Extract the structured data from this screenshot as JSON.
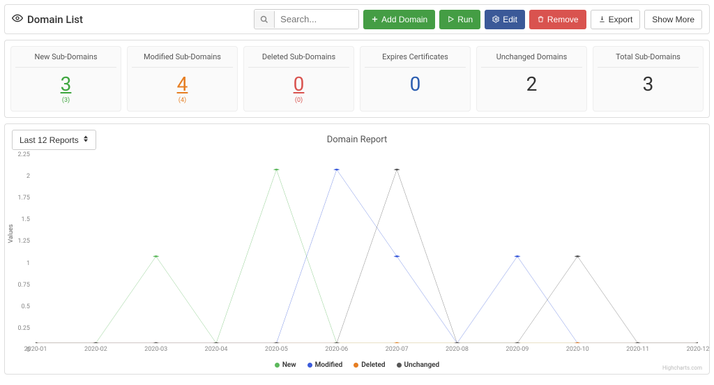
{
  "header": {
    "title": "Domain List",
    "search_placeholder": "Search...",
    "buttons": {
      "add": {
        "label": "Add Domain",
        "bg": "#449d44"
      },
      "run": {
        "label": "Run",
        "bg": "#449d44"
      },
      "edit": {
        "label": "Edit",
        "bg": "#3b5998"
      },
      "remove": {
        "label": "Remove",
        "bg": "#d9534f"
      },
      "export": {
        "label": "Export"
      },
      "more": {
        "label": "Show More"
      }
    }
  },
  "stats": [
    {
      "label": "New Sub-Domains",
      "value": "3",
      "sub": "(3)",
      "color": "#3fa63f",
      "linkish": true
    },
    {
      "label": "Modified Sub-Domains",
      "value": "4",
      "sub": "(4)",
      "color": "#e67e22",
      "linkish": true
    },
    {
      "label": "Deleted Sub-Domains",
      "value": "0",
      "sub": "(0)",
      "color": "#d9534f",
      "linkish": true
    },
    {
      "label": "Expires Certificates",
      "value": "0",
      "color": "#2a5db0"
    },
    {
      "label": "Unchanged Domains",
      "value": "2",
      "color": "#333333"
    },
    {
      "label": "Total Sub-Domains",
      "value": "3",
      "color": "#333333"
    }
  ],
  "chart": {
    "dropdown_label": "Last 12 Reports",
    "title": "Domain Report",
    "type": "line",
    "y_label": "Values",
    "ylim": [
      0,
      2.25
    ],
    "ytick_step": 0.25,
    "categories": [
      "2020-01",
      "2020-02",
      "2020-03",
      "2020-04",
      "2020-05",
      "2020-06",
      "2020-07",
      "2020-08",
      "2020-09",
      "2020-10",
      "2020-11",
      "2020-12"
    ],
    "background_color": "#ffffff",
    "marker": "diamond",
    "marker_size": 4,
    "line_width": 1,
    "series": [
      {
        "name": "New",
        "color": "#5cb85c",
        "values": [
          0,
          0,
          1,
          0,
          2,
          0,
          0,
          0,
          0,
          0,
          0,
          0
        ]
      },
      {
        "name": "Modified",
        "color": "#3b5bdb",
        "values": [
          0,
          0,
          0,
          0,
          0,
          2,
          1,
          0,
          1,
          0,
          0,
          0
        ]
      },
      {
        "name": "Deleted",
        "color": "#e67e22",
        "values": [
          0,
          0,
          0,
          0,
          0,
          0,
          0,
          0,
          0,
          0,
          0,
          0
        ]
      },
      {
        "name": "Unchanged",
        "color": "#555555",
        "values": [
          0,
          0,
          0,
          0,
          0,
          0,
          2,
          0,
          0,
          1,
          0,
          0
        ]
      }
    ],
    "credits": "Highcharts.com"
  }
}
